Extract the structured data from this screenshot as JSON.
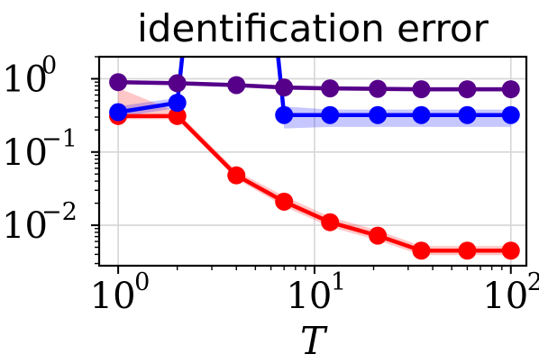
{
  "chart_data": {
    "type": "line",
    "title": "identification error",
    "xlabel": "T",
    "ylabel": "",
    "xscale": "log",
    "yscale": "log",
    "xlim": [
      0.8,
      120
    ],
    "ylim": [
      0.0028,
      2.0
    ],
    "xticks": [
      {
        "value": 1,
        "base": "10",
        "exp": "0"
      },
      {
        "value": 10,
        "base": "10",
        "exp": "1"
      },
      {
        "value": 100,
        "base": "10",
        "exp": "2"
      }
    ],
    "yticks": [
      {
        "value": 1,
        "base": "10",
        "exp": "0"
      },
      {
        "value": 0.1,
        "base": "10",
        "exp": "−1"
      },
      {
        "value": 0.01,
        "base": "10",
        "exp": "−2"
      }
    ],
    "grid": true,
    "series": [
      {
        "color": "#ff0000",
        "x": [
          1,
          2,
          4,
          7,
          12,
          21,
          35,
          60,
          100
        ],
        "y": [
          0.31,
          0.31,
          0.048,
          0.021,
          0.011,
          0.0072,
          0.0045,
          0.0045,
          0.0045
        ],
        "lower": [
          0.28,
          0.28,
          0.043,
          0.018,
          0.0095,
          0.0062,
          0.0039,
          0.0039,
          0.0039
        ],
        "upper": [
          0.75,
          0.35,
          0.055,
          0.025,
          0.013,
          0.0085,
          0.0052,
          0.0052,
          0.0052
        ]
      },
      {
        "color": "#0000ff",
        "x": [
          1,
          2,
          2.2,
          6.3,
          7,
          12,
          21,
          35,
          60,
          100
        ],
        "y": [
          0.35,
          0.47,
          5,
          5,
          0.32,
          0.32,
          0.32,
          0.32,
          0.32,
          0.32
        ],
        "lower": [
          0.3,
          0.4,
          4,
          4,
          0.21,
          0.22,
          0.22,
          0.22,
          0.22,
          0.22
        ],
        "upper": [
          0.42,
          0.55,
          6,
          6,
          0.42,
          0.38,
          0.38,
          0.38,
          0.38,
          0.38
        ],
        "markers": [
          true,
          true,
          false,
          false,
          true,
          true,
          true,
          true,
          true,
          true
        ]
      },
      {
        "color": "#56008a",
        "x": [
          1,
          2,
          4,
          7,
          12,
          21,
          35,
          60,
          100
        ],
        "y": [
          0.9,
          0.87,
          0.82,
          0.76,
          0.74,
          0.73,
          0.72,
          0.72,
          0.72
        ],
        "lower": [
          0.85,
          0.82,
          0.77,
          0.71,
          0.69,
          0.68,
          0.67,
          0.67,
          0.67
        ],
        "upper": [
          0.96,
          0.93,
          0.87,
          0.81,
          0.79,
          0.78,
          0.77,
          0.77,
          0.77
        ]
      }
    ]
  }
}
